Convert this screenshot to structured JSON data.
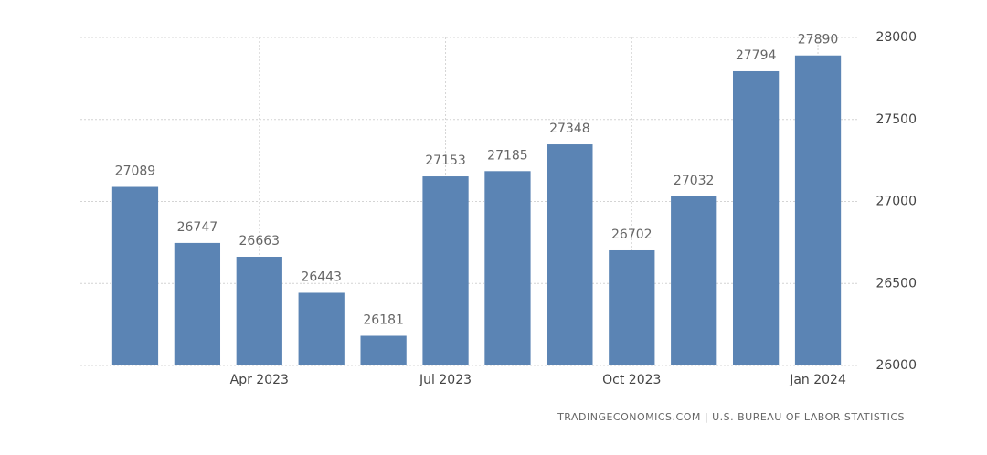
{
  "chart_data": {
    "type": "bar",
    "categories": [
      null,
      null,
      "Apr 2023",
      null,
      null,
      "Jul 2023",
      null,
      null,
      "Oct 2023",
      null,
      null,
      "Jan 2024"
    ],
    "values": [
      27089,
      26747,
      26663,
      26443,
      26181,
      27153,
      27185,
      27348,
      26702,
      27032,
      27794,
      27890
    ],
    "color": "#5b84b4",
    "ylim": [
      26000,
      28000
    ],
    "yticks": [
      26000,
      26500,
      27000,
      27500,
      28000
    ],
    "grid": true,
    "source": "TRADINGECONOMICS.COM | U.S. BUREAU OF LABOR STATISTICS"
  }
}
